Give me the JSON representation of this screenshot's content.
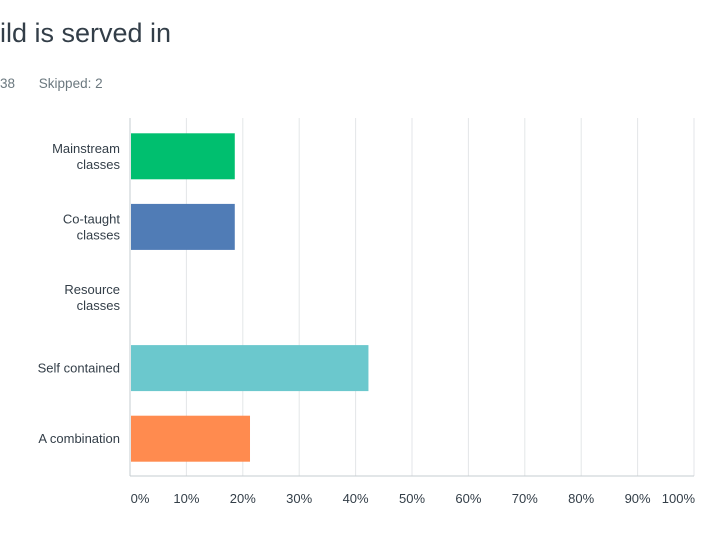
{
  "question": {
    "title": "ild is served in",
    "answered_label": "38",
    "skipped_label": "Skipped: 2"
  },
  "colors": {
    "grid": "#e3e6e8",
    "axis": "#c6ccd0",
    "text": "#333e48",
    "muted": "#6b787f"
  },
  "chart_data": {
    "type": "bar",
    "orientation": "horizontal",
    "categories": [
      [
        "Mainstream",
        "classes"
      ],
      [
        "Co-taught",
        "classes"
      ],
      [
        "Resource",
        "classes"
      ],
      [
        "Self contained"
      ],
      [
        "A combination"
      ]
    ],
    "values": [
      18.4,
      18.4,
      0,
      42.1,
      21.1
    ],
    "unit": "%",
    "bar_colors": [
      "#00bf6f",
      "#507cb6",
      "#f05b24",
      "#6bc8cd",
      "#ff8b4f"
    ],
    "xlim": [
      0,
      100
    ],
    "ticks": [
      "0%",
      "10%",
      "20%",
      "30%",
      "40%",
      "50%",
      "60%",
      "70%",
      "80%",
      "90%",
      "100%"
    ],
    "grid": true
  }
}
